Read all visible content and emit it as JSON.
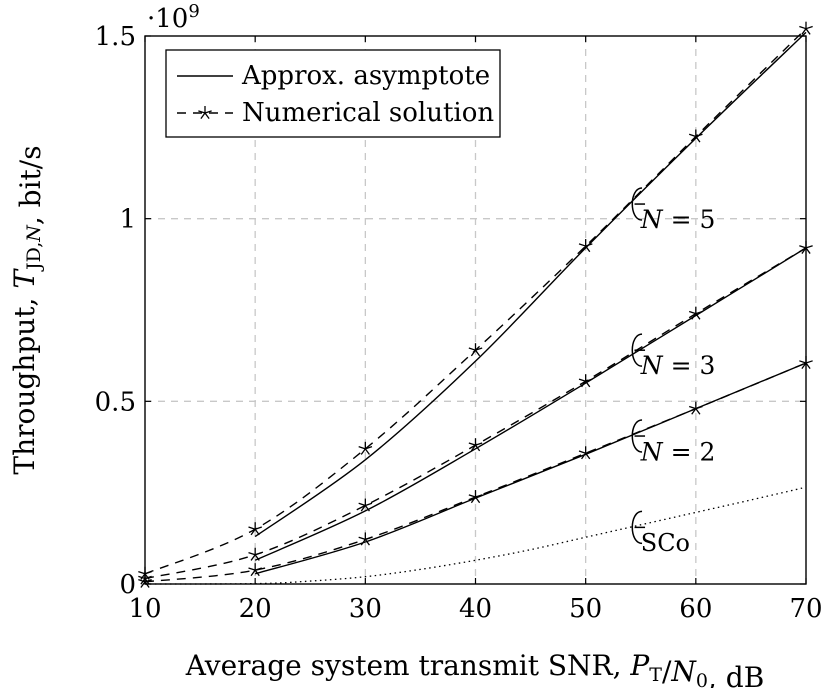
{
  "chart_data": {
    "type": "line",
    "title": "",
    "xlabel": "Average system transmit SNR, P_T/N_0, dB",
    "ylabel": "Throughput, T_JD,N, bit/s",
    "xlim": [
      10,
      70
    ],
    "ylim": [
      0,
      1.5
    ],
    "y_scale_label": "·10^9",
    "x_ticks": [
      10,
      20,
      30,
      40,
      50,
      60,
      70
    ],
    "y_ticks": [
      0,
      0.5,
      1,
      1.5
    ],
    "x_tick_labels": [
      "10",
      "20",
      "30",
      "40",
      "50",
      "60",
      "70"
    ],
    "y_tick_labels": [
      "0",
      "0.5",
      "1",
      "1.5"
    ],
    "grid": true,
    "legend_position": "top-left",
    "legend": [
      {
        "label": "Approx. asymptote",
        "style": "solid"
      },
      {
        "label": "Numerical solution",
        "style": "dashed-star"
      }
    ],
    "series": [
      {
        "name": "N = 5",
        "annotation": "N = 5",
        "asymptote": {
          "x": [
            20,
            30,
            40,
            50,
            60,
            70
          ],
          "y": [
            0.13,
            0.34,
            0.61,
            0.92,
            1.22,
            1.51
          ]
        },
        "numerical": {
          "x": [
            10,
            20,
            30,
            40,
            50,
            60,
            70
          ],
          "y": [
            0.028,
            0.15,
            0.37,
            0.64,
            0.925,
            1.225,
            1.52
          ]
        }
      },
      {
        "name": "N = 3",
        "annotation": "N = 3",
        "asymptote": {
          "x": [
            20,
            30,
            40,
            50,
            60,
            70
          ],
          "y": [
            0.065,
            0.2,
            0.37,
            0.55,
            0.735,
            0.92
          ]
        },
        "numerical": {
          "x": [
            10,
            20,
            30,
            40,
            50,
            60,
            70
          ],
          "y": [
            0.015,
            0.08,
            0.215,
            0.38,
            0.555,
            0.74,
            0.92
          ]
        }
      },
      {
        "name": "N = 2",
        "annotation": "N = 2",
        "asymptote": {
          "x": [
            20,
            30,
            40,
            50,
            60,
            70
          ],
          "y": [
            0.028,
            0.115,
            0.235,
            0.355,
            0.48,
            0.605
          ]
        },
        "numerical": {
          "x": [
            10,
            20,
            30,
            40,
            50,
            60,
            70
          ],
          "y": [
            0.006,
            0.038,
            0.122,
            0.238,
            0.358,
            0.48,
            0.605
          ]
        }
      },
      {
        "name": "SCo",
        "annotation": "SCo",
        "style": "dotted",
        "x": [
          10,
          20,
          25,
          30,
          35,
          40,
          45,
          50,
          55,
          60,
          65,
          70
        ],
        "y": [
          0,
          0.001,
          0.008,
          0.02,
          0.04,
          0.065,
          0.094,
          0.128,
          0.162,
          0.196,
          0.23,
          0.265
        ]
      }
    ]
  }
}
